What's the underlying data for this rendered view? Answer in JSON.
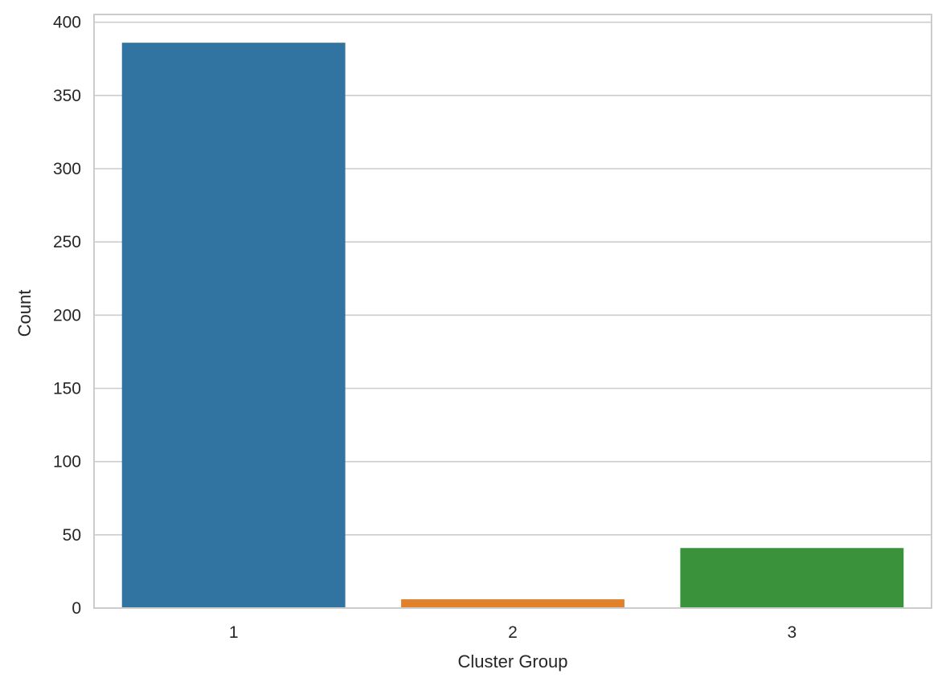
{
  "chart_data": {
    "type": "bar",
    "title": "",
    "xlabel": "Cluster Group",
    "ylabel": "Count",
    "categories": [
      "1",
      "2",
      "3"
    ],
    "values": [
      386,
      6,
      41
    ],
    "bar_colors": [
      "#3274a1",
      "#e1812c",
      "#3a923a"
    ],
    "ylim": [
      0,
      405.3
    ],
    "yticks": [
      0,
      50,
      100,
      150,
      200,
      250,
      300,
      350,
      400
    ],
    "grid": "horizontal",
    "legend": "none",
    "colors": {
      "grid": "#cccccc",
      "spine": "#cccccc",
      "text": "#262626",
      "background": "#ffffff"
    }
  }
}
